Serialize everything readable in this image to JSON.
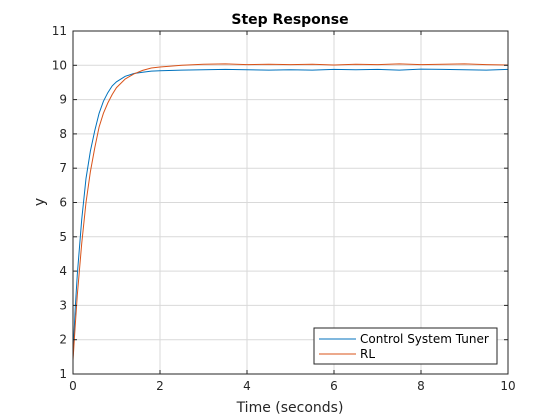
{
  "chart_data": {
    "type": "line",
    "title": "Step Response",
    "xlabel": "Time (seconds)",
    "ylabel": "y",
    "xlim": [
      0,
      10
    ],
    "ylim": [
      1,
      11
    ],
    "xticks": [
      0,
      2,
      4,
      6,
      8,
      10
    ],
    "yticks": [
      1,
      2,
      3,
      4,
      5,
      6,
      7,
      8,
      9,
      10,
      11
    ],
    "grid": true,
    "legend_position": "bottom-right",
    "series": [
      {
        "name": "Control System Tuner",
        "color": "#0072BD",
        "x": [
          0,
          0.05,
          0.1,
          0.2,
          0.3,
          0.4,
          0.5,
          0.6,
          0.7,
          0.8,
          0.9,
          1.0,
          1.2,
          1.4,
          1.6,
          1.8,
          2.0,
          2.5,
          3.0,
          3.5,
          4.0,
          4.5,
          5.0,
          5.5,
          6.0,
          6.5,
          7.0,
          7.5,
          8.0,
          8.5,
          9.0,
          9.5,
          10.0
        ],
        "y": [
          1.5,
          2.9,
          3.9,
          5.5,
          6.7,
          7.5,
          8.1,
          8.6,
          8.95,
          9.2,
          9.4,
          9.52,
          9.68,
          9.76,
          9.8,
          9.83,
          9.84,
          9.86,
          9.87,
          9.88,
          9.87,
          9.86,
          9.87,
          9.86,
          9.88,
          9.87,
          9.88,
          9.86,
          9.89,
          9.88,
          9.87,
          9.86,
          9.88
        ]
      },
      {
        "name": "RL",
        "color": "#D95319",
        "x": [
          0,
          0.05,
          0.1,
          0.2,
          0.3,
          0.4,
          0.5,
          0.6,
          0.7,
          0.8,
          0.9,
          1.0,
          1.2,
          1.4,
          1.6,
          1.8,
          2.0,
          2.5,
          3.0,
          3.5,
          4.0,
          4.5,
          5.0,
          5.5,
          6.0,
          6.5,
          7.0,
          7.5,
          8.0,
          8.5,
          9.0,
          9.5,
          10.0
        ],
        "y": [
          1.4,
          2.4,
          3.3,
          4.8,
          6.0,
          6.9,
          7.6,
          8.2,
          8.6,
          8.9,
          9.15,
          9.35,
          9.6,
          9.75,
          9.85,
          9.92,
          9.95,
          10.0,
          10.03,
          10.04,
          10.02,
          10.03,
          10.02,
          10.03,
          10.01,
          10.03,
          10.02,
          10.04,
          10.02,
          10.03,
          10.04,
          10.02,
          10.01
        ]
      }
    ]
  }
}
